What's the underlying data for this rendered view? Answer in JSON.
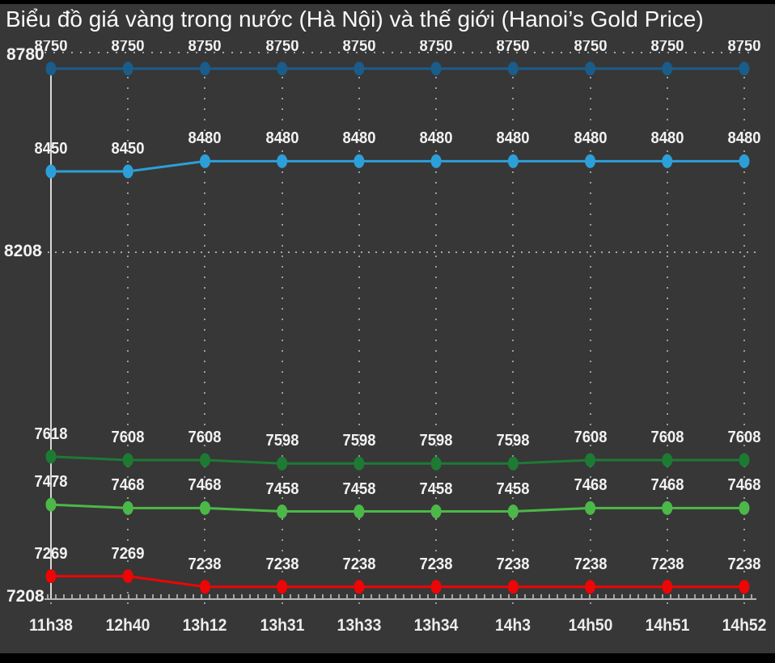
{
  "title": "Biểu đồ giá vàng trong nước (Hà Nội) và thế giới (Hanoi’s Gold Price)",
  "colors": {
    "background": "#373737",
    "border_bars": "#000000",
    "text": "#f2f2f2",
    "grid": "#a8a8a8",
    "axis_line": "#b6b6b6",
    "crosshair": "#d9d9d9"
  },
  "chart_data": {
    "type": "line",
    "title": "Biểu đồ giá vàng trong nước (Hà Nội) và thế giới (Hanoi’s Gold Price)",
    "x": [
      "11h38",
      "12h40",
      "13h12",
      "13h31",
      "13h33",
      "13h34",
      "14h3",
      "14h50",
      "14h51",
      "14h52"
    ],
    "series": [
      {
        "name": "dark-blue",
        "color": "#1a5c8a",
        "values": [
          8750,
          8750,
          8750,
          8750,
          8750,
          8750,
          8750,
          8750,
          8750,
          8750
        ]
      },
      {
        "name": "light-blue",
        "color": "#2d9fd8",
        "values": [
          8450,
          8450,
          8480,
          8480,
          8480,
          8480,
          8480,
          8480,
          8480,
          8480
        ]
      },
      {
        "name": "dark-green",
        "color": "#1d7a33",
        "values": [
          7618,
          7608,
          7608,
          7598,
          7598,
          7598,
          7598,
          7608,
          7608,
          7608
        ]
      },
      {
        "name": "light-green",
        "color": "#4cb848",
        "values": [
          7478,
          7468,
          7468,
          7458,
          7458,
          7458,
          7458,
          7468,
          7468,
          7468
        ]
      },
      {
        "name": "red",
        "color": "#ee0505",
        "values": [
          7269,
          7269,
          7238,
          7238,
          7238,
          7238,
          7238,
          7238,
          7238,
          7238
        ]
      }
    ],
    "y_axis_ticks": [
      "8780",
      "8208",
      "7208"
    ],
    "ylim": [
      7208,
      8780
    ],
    "grid": "dotted",
    "legend": "none",
    "point_labels": "shown above each point"
  }
}
